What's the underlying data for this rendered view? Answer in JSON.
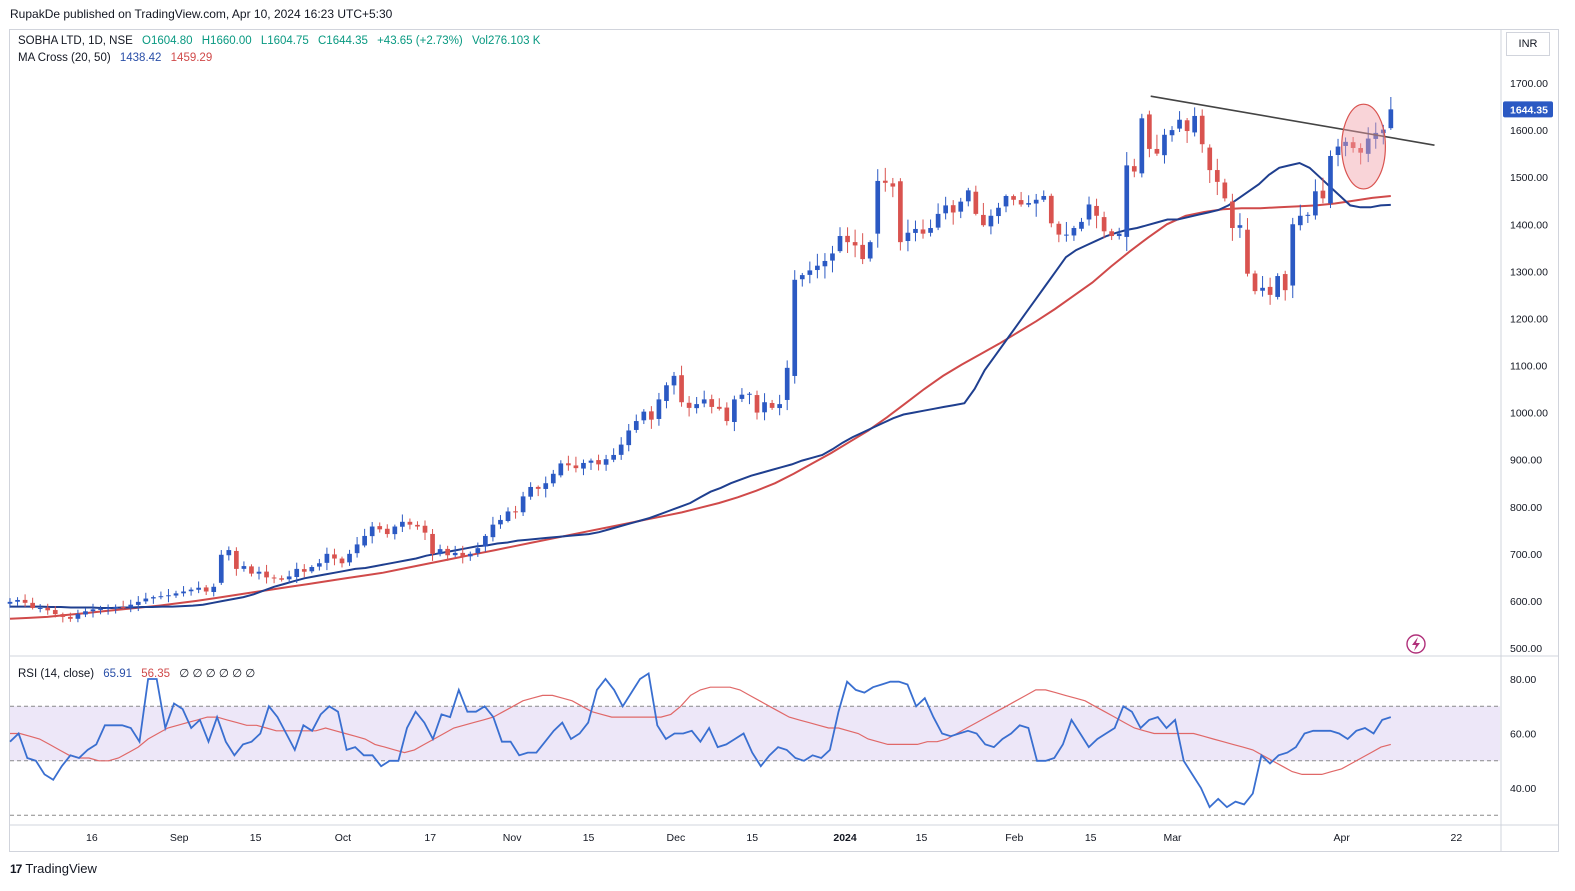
{
  "header": {
    "published": "RupakDe published on TradingView.com, Apr 10, 2024 16:23 UTC+5:30"
  },
  "legend": {
    "symbol": "SOBHA LTD, 1D, NSE",
    "open": "O1604.80",
    "high": "H1660.00",
    "low": "L1604.75",
    "close": "C1644.35",
    "change": "+43.65 (+2.73%)",
    "volume": "Vol276.103 K",
    "ma_label": "MA Cross (20, 50)",
    "ma20_value": "1438.42",
    "ma50_value": "1459.29",
    "rsi_label": "RSI (14, close)",
    "rsi_value": "65.91",
    "rsi_ma_value": "56.35",
    "rsi_extras": "∅ ∅ ∅ ∅ ∅ ∅"
  },
  "currency": "INR",
  "price_badge": "1644.35",
  "footer": {
    "logo": "17",
    "brand": "TradingView"
  },
  "colors": {
    "up": "#2b59c3",
    "down": "#d9534f",
    "ma20": "#1f3f8f",
    "ma50": "#d04a4a",
    "rsi": "#3a6fd0",
    "rsi_ma": "#e06868",
    "rsi_band": "#ede7f8",
    "trendline": "#444444",
    "ellipse": "#f2a0a8"
  },
  "chart_data": [
    {
      "type": "candlestick",
      "title": "SOBHA LTD, 1D, NSE",
      "ylabel": "INR",
      "ylim": [
        500,
        1700
      ],
      "y_ticks": [
        "1700.00",
        "1600.00",
        "1500.00",
        "1400.00",
        "1300.00",
        "1200.00",
        "1100.00",
        "1000.00",
        "900.00",
        "800.00",
        "700.00",
        "600.00",
        "500.00"
      ],
      "x_ticks": [
        "16",
        "Sep",
        "15",
        "Oct",
        "17",
        "Nov",
        "15",
        "Dec",
        "15",
        "2024",
        "15",
        "Feb",
        "15",
        "Mar",
        "Apr",
        "22"
      ],
      "x_tick_dates": [
        "2023-08-16",
        "2023-09-01",
        "2023-09-15",
        "2023-10-01",
        "2023-10-17",
        "2023-11-01",
        "2023-11-15",
        "2023-12-01",
        "2023-12-15",
        "2024-01-01",
        "2024-01-15",
        "2024-02-01",
        "2024-02-15",
        "2024-03-01",
        "2024-04-01",
        "2024-04-22"
      ],
      "x_start": "2023-08-01",
      "x_end": "2024-04-30",
      "x_first_bar": "2023-08-01",
      "x_last_bar": "2024-04-10",
      "closes": [
        598,
        602,
        596,
        585,
        585,
        580,
        572,
        566,
        562,
        572,
        578,
        582,
        583,
        585,
        587,
        586,
        592,
        598,
        605,
        608,
        610,
        612,
        616,
        620,
        624,
        628,
        620,
        630,
        698,
        708,
        668,
        674,
        658,
        662,
        650,
        648,
        645,
        652,
        668,
        662,
        672,
        680,
        700,
        690,
        680,
        700,
        720,
        738,
        758,
        752,
        742,
        758,
        768,
        762,
        758,
        745,
        700,
        710,
        697,
        702,
        695,
        700,
        712,
        738,
        762,
        772,
        790,
        788,
        822,
        842,
        838,
        850,
        870,
        892,
        888,
        882,
        893,
        898,
        890,
        901,
        910,
        932,
        962,
        982,
        1002,
        985,
        1028,
        1058,
        1078,
        1022,
        1010,
        1018,
        1028,
        1012,
        1008,
        982,
        1028,
        1038,
        1040,
        1000,
        1022,
        1010,
        1018,
        1095,
        1282,
        1292,
        1302,
        1312,
        1322,
        1338,
        1375,
        1362,
        1355,
        1326,
        1362,
        1492,
        1488,
        1480,
        1362,
        1382,
        1390,
        1380,
        1392,
        1422,
        1440,
        1425,
        1448,
        1472,
        1422,
        1398,
        1418,
        1435,
        1460,
        1452,
        1442,
        1445,
        1452,
        1460,
        1402,
        1378,
        1378,
        1392,
        1405,
        1442,
        1418,
        1385,
        1375,
        1380,
        1525,
        1512,
        1625,
        1560,
        1550,
        1590,
        1600,
        1622,
        1598,
        1630,
        1570,
        1515,
        1490,
        1455,
        1392,
        1398,
        1295,
        1258,
        1265,
        1250,
        1290,
        1260,
        1400,
        1418,
        1420,
        1470,
        1455,
        1545,
        1565,
        1575,
        1562,
        1552,
        1582,
        1594,
        1601,
        1644
      ],
      "ma20_approx": [
        588,
        588,
        588,
        588,
        587,
        587,
        586,
        586,
        586,
        585,
        585,
        586,
        586,
        587,
        587,
        588,
        588,
        589,
        590,
        592,
        596,
        600,
        604,
        608,
        614,
        622,
        630,
        636,
        642,
        648,
        652,
        656,
        660,
        664,
        668,
        670,
        674,
        678,
        682,
        686,
        690,
        696,
        700,
        704,
        708,
        712,
        716,
        718,
        722,
        724,
        728,
        730,
        732,
        734,
        736,
        738,
        740,
        742,
        746,
        752,
        758,
        764,
        770,
        776,
        784,
        792,
        800,
        808,
        820,
        832,
        840,
        850,
        858,
        866,
        872,
        878,
        884,
        890,
        898,
        904,
        910,
        922,
        936,
        948,
        958,
        968,
        978,
        988,
        996,
        1000,
        1004,
        1008,
        1012,
        1016,
        1020,
        1050,
        1090,
        1120,
        1150,
        1180,
        1210,
        1240,
        1270,
        1300,
        1330,
        1345,
        1355,
        1365,
        1375,
        1382,
        1388,
        1392,
        1398,
        1404,
        1410,
        1410,
        1415,
        1420,
        1425,
        1430,
        1440,
        1455,
        1470,
        1485,
        1505,
        1520,
        1525,
        1530,
        1520,
        1500,
        1480,
        1460,
        1440,
        1436,
        1436,
        1440,
        1441
      ],
      "ma50_approx": [
        562,
        564,
        566,
        570,
        574,
        578,
        582,
        586,
        590,
        595,
        600,
        606,
        612,
        618,
        624,
        630,
        636,
        642,
        648,
        654,
        660,
        668,
        676,
        684,
        692,
        700,
        708,
        716,
        724,
        732,
        740,
        748,
        756,
        764,
        772,
        780,
        788,
        798,
        808,
        820,
        834,
        850,
        870,
        892,
        914,
        938,
        962,
        990,
        1020,
        1050,
        1078,
        1102,
        1124,
        1146,
        1170,
        1194,
        1220,
        1248,
        1276,
        1310,
        1342,
        1372,
        1400,
        1418,
        1426,
        1432,
        1434,
        1434,
        1436,
        1438,
        1440,
        1444,
        1450,
        1456,
        1460
      ],
      "annotations": [
        "descending trendline from late Feb high to mid Apr",
        "ellipse around early April consolidation"
      ]
    },
    {
      "type": "line",
      "title": "RSI (14, close)",
      "ylim": [
        28,
        84
      ],
      "y_ticks": [
        "80.00",
        "60.00",
        "40.00"
      ],
      "band": [
        50,
        70
      ],
      "levels": [
        30,
        50,
        70
      ],
      "rsi_value": 65.91,
      "rsi_ma_value": 56.35,
      "rsi": [
        57,
        60,
        51,
        50,
        45,
        43,
        48,
        52,
        51,
        54,
        56,
        63,
        63,
        63,
        62,
        57,
        80,
        80,
        62,
        71,
        69,
        62,
        65,
        57,
        66,
        57,
        52,
        56,
        57,
        60,
        70,
        66,
        60,
        54,
        63,
        61,
        67,
        70,
        68,
        54,
        55,
        52,
        52,
        48,
        50,
        50,
        62,
        68,
        64,
        58,
        67,
        66,
        76,
        68,
        68,
        70,
        66,
        57,
        57,
        52,
        53,
        53,
        57,
        61,
        64,
        58,
        60,
        64,
        76,
        80,
        76,
        70,
        75,
        80,
        82,
        63,
        58,
        60,
        60,
        61,
        57,
        62,
        55,
        56,
        58,
        60,
        53,
        48,
        52,
        55,
        54,
        51,
        50,
        52,
        51,
        54,
        68,
        79,
        76,
        75,
        77,
        78,
        79,
        79,
        78,
        70,
        73,
        66,
        60,
        59,
        60,
        61,
        60,
        56,
        55,
        58,
        60,
        63,
        62,
        50,
        50,
        51,
        56,
        65,
        60,
        55,
        58,
        60,
        62,
        70,
        68,
        62,
        65,
        66,
        62,
        65,
        50,
        45,
        40,
        33,
        36,
        33,
        35,
        34,
        38,
        52,
        49,
        52,
        53,
        55,
        60,
        61,
        61,
        61,
        60,
        58,
        61,
        62,
        60,
        65,
        66
      ],
      "rsi_ma": [
        60,
        60,
        59,
        58,
        56,
        54,
        52,
        51,
        51,
        50,
        50,
        51,
        53,
        55,
        58,
        60,
        62,
        63,
        64,
        65,
        66,
        66,
        65,
        64,
        63,
        63,
        62,
        61,
        61,
        61,
        61,
        61,
        62,
        61,
        60,
        59,
        58,
        56,
        55,
        54,
        53,
        54,
        56,
        58,
        60,
        62,
        63,
        64,
        65,
        66,
        68,
        70,
        72,
        73,
        74,
        74,
        73,
        72,
        70,
        68,
        67,
        66,
        66,
        66,
        66,
        66,
        66,
        67,
        70,
        74,
        76,
        77,
        77,
        77,
        76,
        74,
        72,
        70,
        68,
        66,
        65,
        64,
        63,
        62,
        62,
        61,
        60,
        58,
        57,
        56,
        56,
        56,
        56,
        57,
        57,
        58,
        60,
        62,
        64,
        66,
        68,
        70,
        72,
        74,
        76,
        76,
        75,
        74,
        73,
        72,
        70,
        68,
        66,
        64,
        62,
        61,
        60,
        60,
        60,
        60,
        60,
        59,
        58,
        57,
        56,
        55,
        54,
        52,
        50,
        48,
        46,
        45,
        45,
        45,
        46,
        47,
        49,
        51,
        53,
        55,
        56
      ]
    }
  ]
}
